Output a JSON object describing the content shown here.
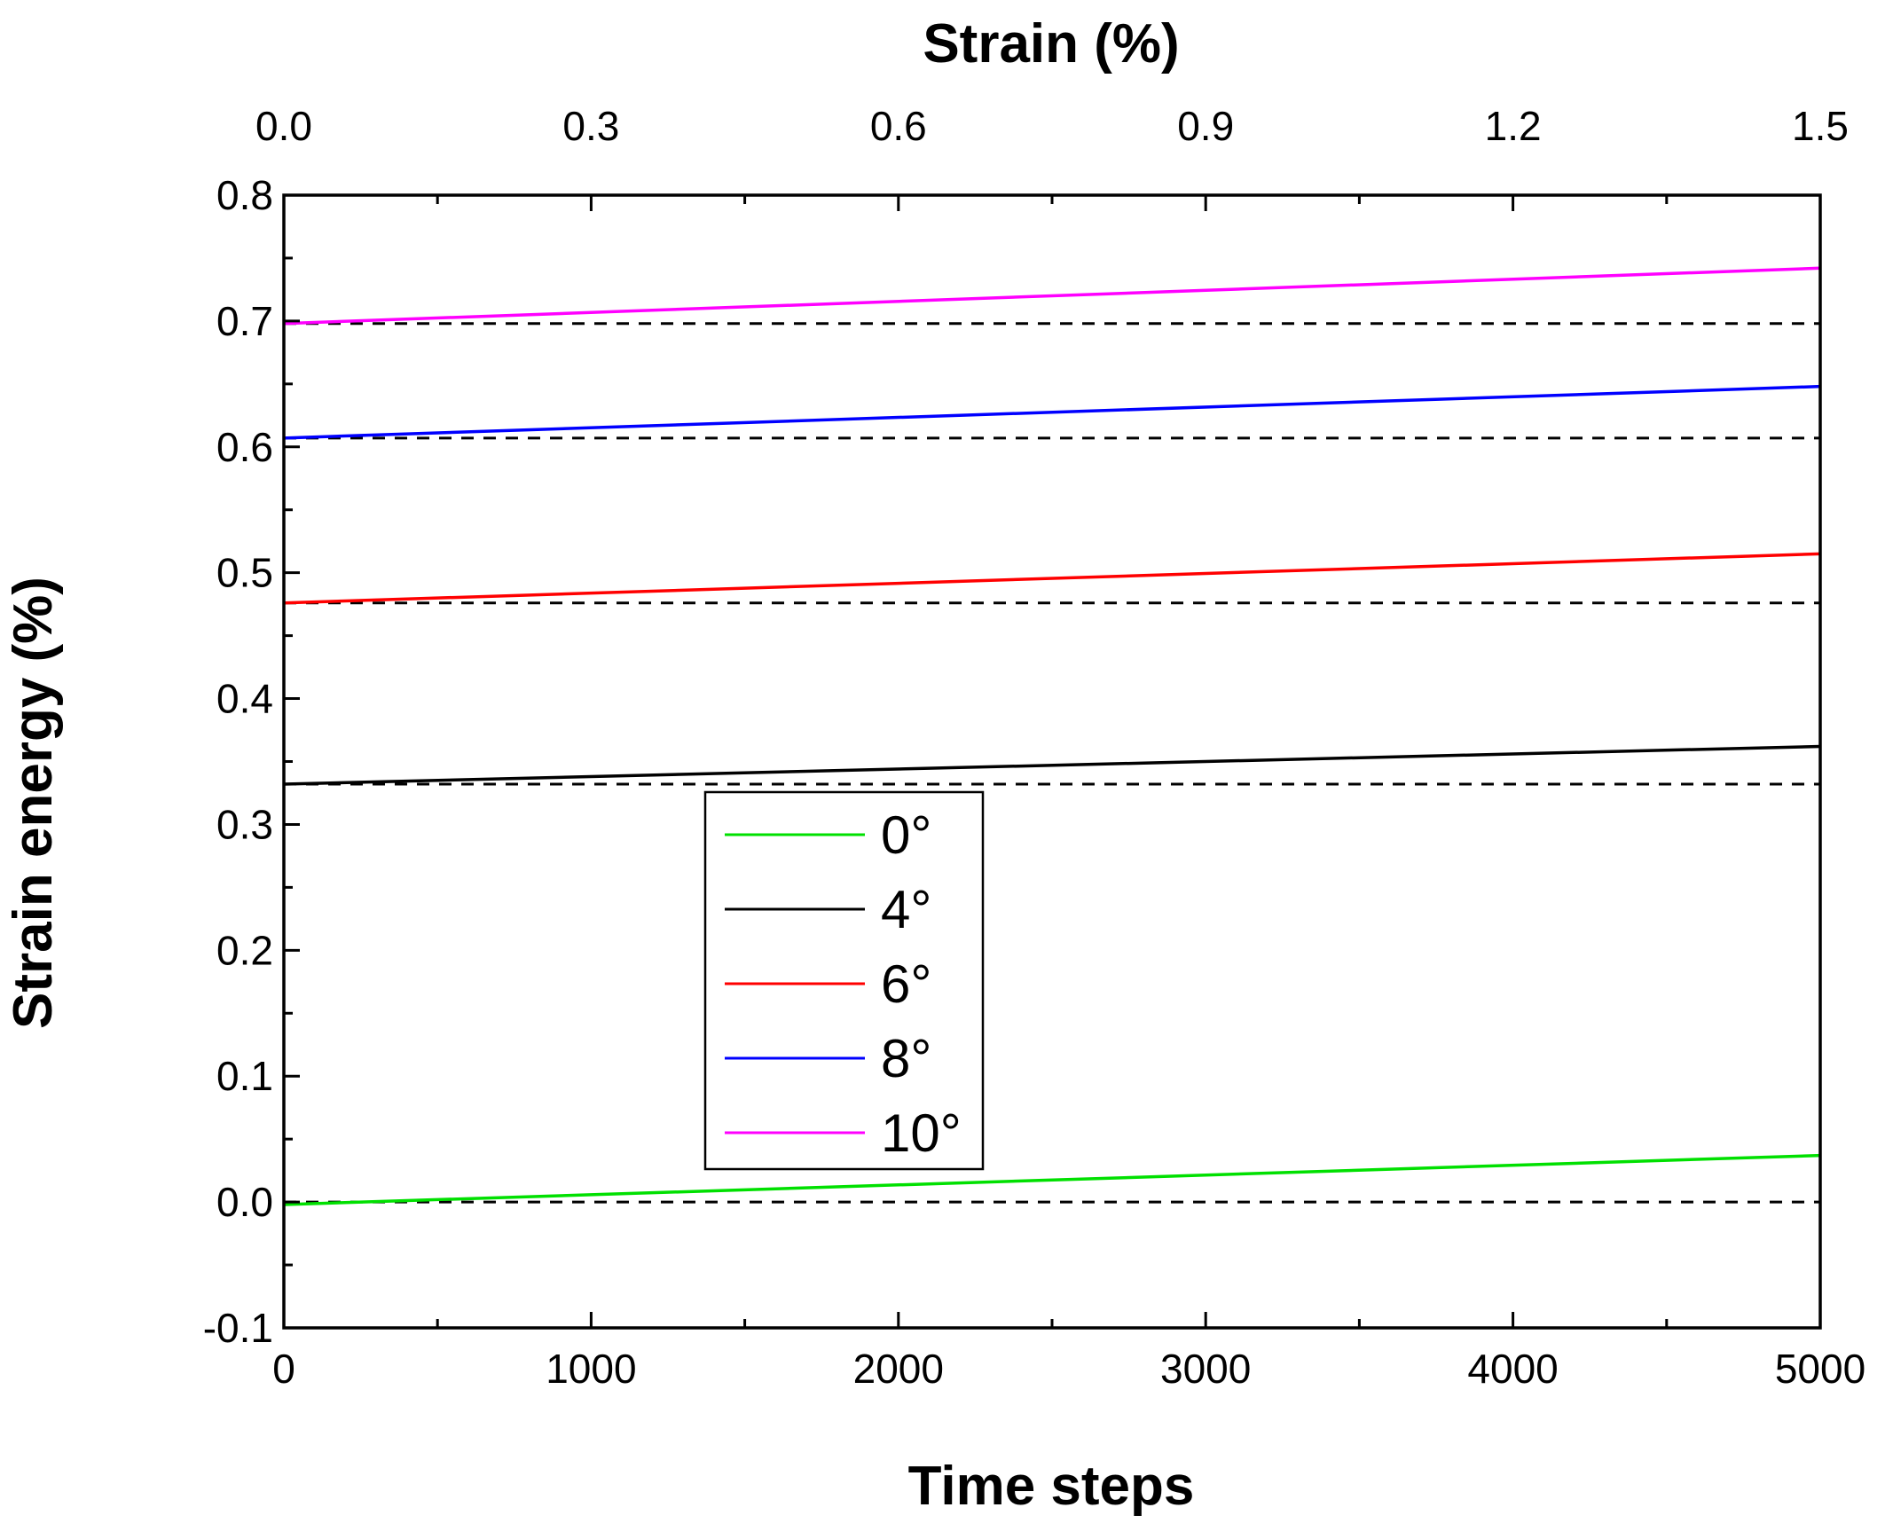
{
  "chart_data": {
    "type": "line",
    "title": "",
    "xlabel": "Time steps",
    "ylabel": "Strain energy (%)",
    "x2label": "Strain (%)",
    "xlim": [
      0,
      5000
    ],
    "ylim": [
      -0.1,
      0.8
    ],
    "x2lim": [
      0,
      1.5
    ],
    "xticks": [
      0,
      1000,
      2000,
      3000,
      4000,
      5000
    ],
    "xtick_labels": [
      "0",
      "1000",
      "2000",
      "3000",
      "4000",
      "5000"
    ],
    "yticks": [
      -0.1,
      0.0,
      0.1,
      0.2,
      0.3,
      0.4,
      0.5,
      0.6,
      0.7,
      0.8
    ],
    "ytick_labels": [
      "-0.1",
      "0.0",
      "0.1",
      "0.2",
      "0.3",
      "0.4",
      "0.5",
      "0.6",
      "0.7",
      "0.8"
    ],
    "x2ticks": [
      0,
      0.3,
      0.6,
      0.9,
      1.2,
      1.5
    ],
    "x2tick_labels": [
      "0.0",
      "0.3",
      "0.6",
      "0.9",
      "1.2",
      "1.5"
    ],
    "grid": false,
    "legend_position": "center-left",
    "series": [
      {
        "name": "0°",
        "color": "#00e000",
        "x": [
          0,
          5000
        ],
        "values": [
          -0.002,
          0.037
        ]
      },
      {
        "name": "4°",
        "color": "#000000",
        "x": [
          0,
          5000
        ],
        "values": [
          0.332,
          0.362
        ]
      },
      {
        "name": "6°",
        "color": "#ff0000",
        "x": [
          0,
          5000
        ],
        "values": [
          0.476,
          0.515
        ]
      },
      {
        "name": "8°",
        "color": "#0000ff",
        "x": [
          0,
          5000
        ],
        "values": [
          0.607,
          0.648
        ]
      },
      {
        "name": "10°",
        "color": "#ff00ff",
        "x": [
          0,
          5000
        ],
        "values": [
          0.698,
          0.742
        ]
      }
    ],
    "reference_lines": [
      {
        "y": 0.0,
        "style": "dashed",
        "color": "#000000"
      },
      {
        "y": 0.332,
        "style": "dashed",
        "color": "#000000"
      },
      {
        "y": 0.476,
        "style": "dashed",
        "color": "#000000"
      },
      {
        "y": 0.607,
        "style": "dashed",
        "color": "#000000"
      },
      {
        "y": 0.698,
        "style": "dashed",
        "color": "#000000"
      }
    ]
  }
}
